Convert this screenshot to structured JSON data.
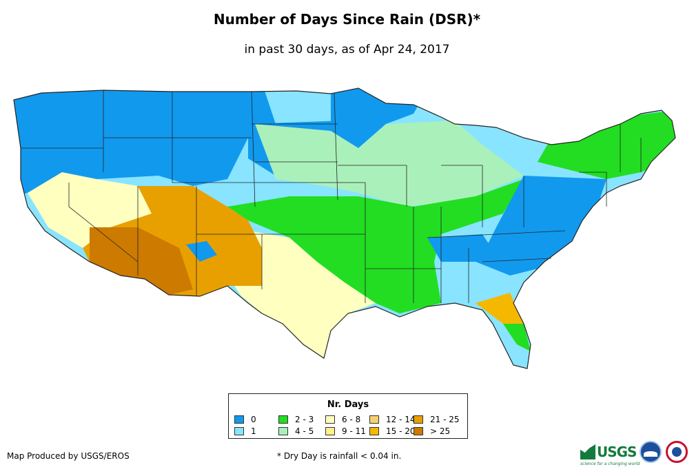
{
  "title": "Number of Days Since Rain (DSR)*",
  "subtitle": "in past 30 days, as of Apr 24, 2017",
  "legend": {
    "title": "Nr. Days",
    "items": [
      {
        "label": "0",
        "color": "#1199ee"
      },
      {
        "label": "1",
        "color": "#88e4ff"
      },
      {
        "label": "2 - 3",
        "color": "#22dd22"
      },
      {
        "label": "4 - 5",
        "color": "#aaf0bb"
      },
      {
        "label": "6 - 8",
        "color": "#ffffc0"
      },
      {
        "label": "9 - 11",
        "color": "#fff088"
      },
      {
        "label": "12 - 14",
        "color": "#f5d070"
      },
      {
        "label": "15 - 20",
        "color": "#f5b800"
      },
      {
        "label": "21 - 25",
        "color": "#e8a000"
      },
      {
        "label": "> 25",
        "color": "#cc7a00"
      }
    ]
  },
  "credit": "Map Produced by USGS/EROS",
  "footnote": "* Dry Day is rainfall < 0.04 in.",
  "logos": {
    "usgs": "USGS",
    "usgs_tagline": "science for a changing world",
    "others": [
      "noaa-logo",
      "nws-logo"
    ]
  },
  "map": {
    "region": "Contiguous United States",
    "state_borders": true
  }
}
